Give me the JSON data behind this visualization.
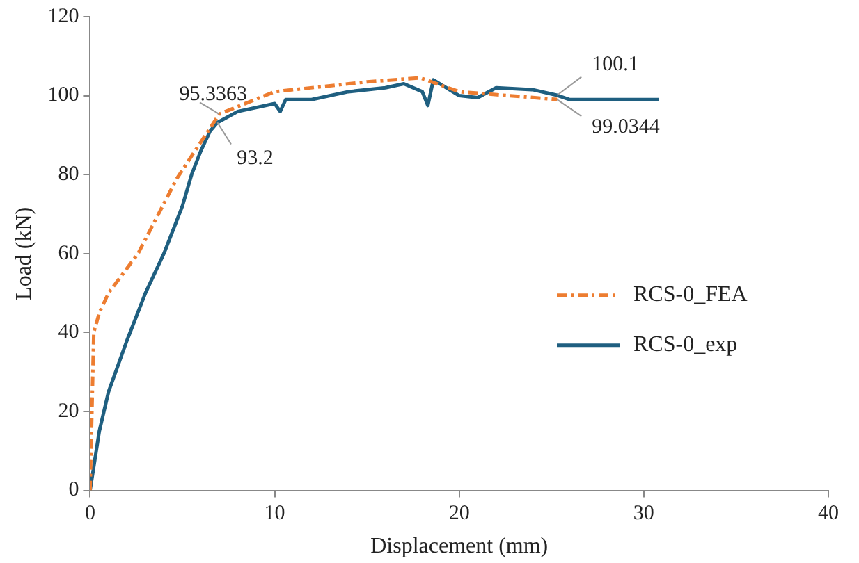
{
  "chart_data": {
    "type": "line",
    "xlabel": "Displacement (mm)",
    "ylabel": "Load (kN)",
    "xlim": [
      0,
      40
    ],
    "xticks": [
      0,
      10,
      20,
      30,
      40
    ],
    "ylim": [
      0,
      120
    ],
    "yticks": [
      0,
      20,
      40,
      60,
      80,
      100,
      120
    ],
    "grid": false,
    "legend": "right",
    "marker": "none",
    "series": [
      {
        "name": "RCS-0_FEA",
        "color": "#ed7d31",
        "line_style": "dashed",
        "x": [
          0,
          0.2,
          0.5,
          1,
          2.6,
          4.7,
          7,
          10,
          15,
          17.9,
          20,
          25.3
        ],
        "values": [
          0,
          40,
          45,
          50,
          60,
          79,
          95.3363,
          101,
          103.5,
          104.5,
          101,
          99.0344
        ]
      },
      {
        "name": "RCS-0_exp",
        "color": "#1f5f80",
        "line_style": "solid",
        "x": [
          0,
          0.5,
          1,
          2,
          3,
          4,
          5,
          5.5,
          6,
          6.5,
          6.9,
          8,
          10,
          10.3,
          10.6,
          12,
          14,
          16,
          17,
          18,
          18.3,
          18.6,
          20,
          21,
          22,
          24,
          25.3,
          26,
          30.8
        ],
        "values": [
          0,
          15,
          25,
          38,
          50,
          60,
          72,
          80,
          86,
          91,
          93.2,
          96,
          98,
          96,
          99,
          99,
          101,
          102,
          103,
          101,
          97.5,
          104,
          100,
          99.5,
          102,
          101.5,
          100.1,
          99,
          99
        ]
      }
    ],
    "annotations": [
      {
        "text": "95.3363",
        "x": 7,
        "y": 95.3363
      },
      {
        "text": "93.2",
        "x": 6.9,
        "y": 93.2
      },
      {
        "text": "100.1",
        "x": 25.3,
        "y": 100.1
      },
      {
        "text": "99.0344",
        "x": 25.3,
        "y": 99.0344
      }
    ]
  }
}
